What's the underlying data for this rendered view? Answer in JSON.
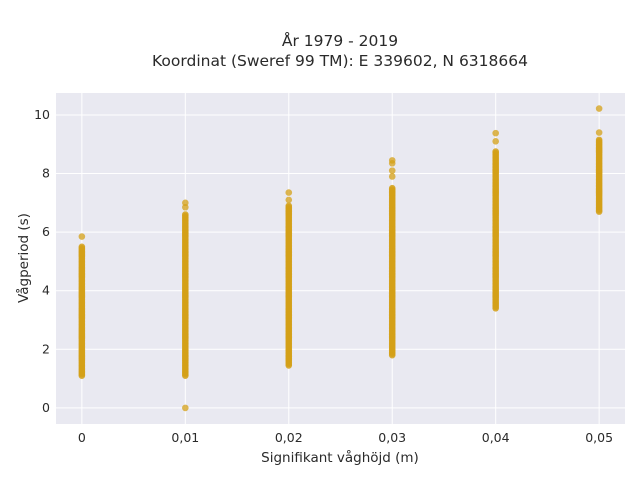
{
  "chart_data": {
    "type": "scatter",
    "title_lines": [
      "År 1979 - 2019",
      "Koordinat (Sweref 99 TM): E 339602, N 6318664"
    ],
    "xlabel": "Signifikant våghöjd (m)",
    "ylabel": "Vågperiod (s)",
    "x_ticks": [
      0,
      0.01,
      0.02,
      0.03,
      0.04,
      0.05
    ],
    "x_tick_labels": [
      "0",
      "0,01",
      "0,02",
      "0,03",
      "0,04",
      "0,05"
    ],
    "y_ticks": [
      0,
      2,
      4,
      6,
      8,
      10
    ],
    "y_tick_labels": [
      "0",
      "2",
      "4",
      "6",
      "8",
      "10"
    ],
    "xlim": [
      -0.0025,
      0.0525
    ],
    "ylim": [
      -0.55,
      10.75
    ],
    "grid": true,
    "color": "#D4A017",
    "background": "#E9E9F1",
    "series": [
      {
        "x": 0,
        "y_range": [
          1.1,
          5.5
        ],
        "outliers": [
          5.85
        ]
      },
      {
        "x": 0.01,
        "y_range": [
          1.1,
          6.6
        ],
        "outliers": [
          0.0,
          6.85,
          7.0
        ]
      },
      {
        "x": 0.02,
        "y_range": [
          1.45,
          6.9
        ],
        "outliers": [
          7.1,
          7.35
        ]
      },
      {
        "x": 0.03,
        "y_range": [
          1.8,
          7.5
        ],
        "outliers": [
          7.9,
          8.1,
          8.35,
          8.45
        ]
      },
      {
        "x": 0.04,
        "y_range": [
          3.4,
          8.75
        ],
        "outliers": [
          9.1,
          9.38
        ]
      },
      {
        "x": 0.05,
        "y_range": [
          6.7,
          9.15
        ],
        "outliers": [
          9.4,
          10.22
        ]
      }
    ]
  }
}
